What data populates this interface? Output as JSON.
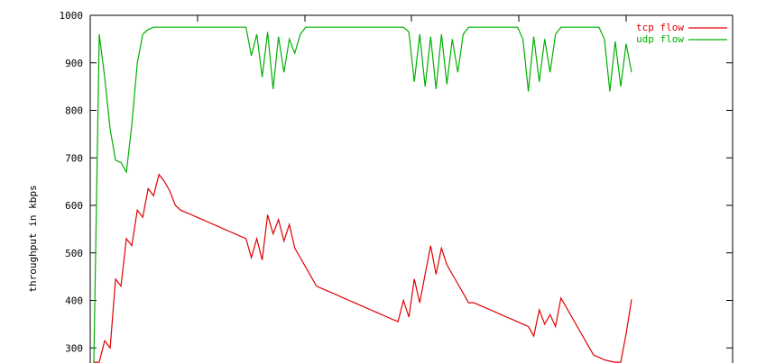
{
  "chart_data": {
    "type": "line",
    "ylabel": "throughput in kbps",
    "xlabel": "",
    "title": "",
    "ylim": [
      270,
      1000
    ],
    "y_ticks": [
      1000,
      900,
      800,
      700,
      600,
      500,
      400,
      300
    ],
    "legend_position": "top-right",
    "grid": false,
    "series": [
      {
        "name": "tcp flow",
        "color": "#e00000",
        "x": [
          0,
          1,
          2,
          3,
          4,
          5,
          6,
          7,
          8,
          9,
          10,
          11,
          12,
          13,
          14,
          15,
          16,
          17,
          18,
          19,
          20,
          21,
          22,
          23,
          24,
          25,
          26,
          27,
          28,
          29,
          30,
          31,
          32,
          33,
          34,
          35,
          36,
          37,
          38,
          39,
          40,
          41,
          42,
          43,
          44,
          45,
          46,
          47,
          48,
          49,
          50,
          51,
          52,
          53,
          54,
          55,
          56,
          57,
          58,
          59,
          60,
          61,
          62,
          63,
          64,
          65,
          66,
          67,
          68,
          69,
          70,
          71,
          72,
          73,
          74,
          75,
          76,
          77,
          78,
          79,
          80,
          81,
          82,
          83,
          84,
          85,
          86,
          87,
          88,
          89,
          90,
          91,
          92,
          93,
          94,
          95,
          96,
          97,
          98,
          99
        ],
        "values": [
          270,
          270,
          315,
          300,
          445,
          430,
          530,
          515,
          590,
          575,
          635,
          620,
          665,
          650,
          630,
          600,
          590,
          585,
          580,
          575,
          570,
          565,
          560,
          555,
          550,
          545,
          540,
          535,
          530,
          490,
          530,
          485,
          580,
          540,
          570,
          525,
          560,
          510,
          490,
          470,
          450,
          430,
          425,
          420,
          415,
          410,
          405,
          400,
          395,
          390,
          385,
          380,
          375,
          370,
          365,
          360,
          355,
          400,
          365,
          445,
          395,
          455,
          515,
          455,
          510,
          475,
          455,
          435,
          415,
          395,
          395,
          390,
          385,
          380,
          375,
          370,
          365,
          360,
          355,
          350,
          345,
          325,
          380,
          350,
          370,
          345,
          405,
          385,
          365,
          345,
          325,
          305,
          285,
          280,
          275,
          272,
          270,
          270,
          330,
          402
        ]
      },
      {
        "name": "udp flow",
        "color": "#00b000",
        "x": [
          0,
          1,
          2,
          3,
          4,
          5,
          6,
          7,
          8,
          9,
          10,
          11,
          12,
          13,
          14,
          15,
          16,
          17,
          18,
          19,
          20,
          21,
          22,
          23,
          24,
          25,
          26,
          27,
          28,
          29,
          30,
          31,
          32,
          33,
          34,
          35,
          36,
          37,
          38,
          39,
          40,
          41,
          42,
          43,
          44,
          45,
          46,
          47,
          48,
          49,
          50,
          51,
          52,
          53,
          54,
          55,
          56,
          57,
          58,
          59,
          60,
          61,
          62,
          63,
          64,
          65,
          66,
          67,
          68,
          69,
          70,
          71,
          72,
          73,
          74,
          75,
          76,
          77,
          78,
          79,
          80,
          81,
          82,
          83,
          84,
          85,
          86,
          87,
          88,
          89,
          90,
          91,
          92,
          93,
          94,
          95,
          96,
          97,
          98,
          99
        ],
        "values": [
          270,
          960,
          870,
          760,
          695,
          690,
          670,
          770,
          900,
          960,
          970,
          975,
          975,
          975,
          975,
          975,
          975,
          975,
          975,
          975,
          975,
          975,
          975,
          975,
          975,
          975,
          975,
          975,
          975,
          915,
          960,
          870,
          965,
          845,
          955,
          880,
          950,
          920,
          960,
          975,
          975,
          975,
          975,
          975,
          975,
          975,
          975,
          975,
          975,
          975,
          975,
          975,
          975,
          975,
          975,
          975,
          975,
          975,
          965,
          860,
          960,
          850,
          955,
          845,
          960,
          855,
          950,
          880,
          960,
          975,
          975,
          975,
          975,
          975,
          975,
          975,
          975,
          975,
          975,
          950,
          840,
          955,
          860,
          950,
          880,
          960,
          975,
          975,
          975,
          975,
          975,
          975,
          975,
          975,
          950,
          840,
          945,
          850,
          940,
          880
        ]
      }
    ]
  }
}
